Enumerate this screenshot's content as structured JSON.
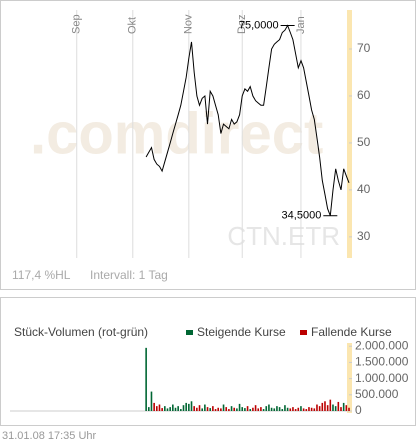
{
  "chart_data": [
    {
      "type": "line",
      "watermark": ".comdirect",
      "symbol": "CTN.ETR",
      "info": [
        "117,4 %HL",
        "Intervall: 1 Tag"
      ],
      "categories": [
        null,
        null,
        null,
        null,
        null,
        null,
        null,
        null,
        null,
        null,
        null,
        null,
        null,
        null,
        null,
        null,
        null,
        null,
        null,
        null,
        null,
        null,
        null,
        null,
        null,
        "Sep",
        null,
        null,
        null,
        null,
        null,
        null,
        null,
        null,
        null,
        null,
        null,
        null,
        null,
        null,
        null,
        null,
        null,
        null,
        null,
        null,
        "Okt",
        null,
        null,
        null,
        null,
        null,
        null,
        null,
        null,
        null,
        null,
        null,
        null,
        null,
        null,
        null,
        null,
        null,
        null,
        null,
        null,
        "Nov",
        null,
        null,
        null,
        null,
        null,
        null,
        null,
        null,
        null,
        null,
        null,
        null,
        null,
        null,
        null,
        null,
        null,
        null,
        null,
        "Dez",
        null,
        null,
        null,
        null,
        null,
        null,
        null,
        null,
        null,
        null,
        null,
        null,
        null,
        null,
        null,
        null,
        null,
        null,
        null,
        null,
        null,
        "Jan",
        null,
        null,
        null,
        null,
        null,
        null,
        null,
        null,
        null,
        null,
        null,
        null,
        null,
        null,
        null,
        null,
        null,
        null
      ],
      "series": [
        {
          "name": "CTN.ETR",
          "color": "#000000",
          "values": [
            null,
            null,
            null,
            null,
            null,
            null,
            null,
            null,
            null,
            null,
            null,
            null,
            null,
            null,
            null,
            null,
            null,
            null,
            null,
            null,
            null,
            null,
            null,
            null,
            null,
            null,
            null,
            null,
            null,
            null,
            null,
            null,
            null,
            null,
            null,
            null,
            null,
            null,
            null,
            null,
            null,
            null,
            null,
            null,
            null,
            null,
            null,
            null,
            null,
            null,
            null,
            47,
            48,
            49,
            46.5,
            45.5,
            45,
            44,
            46,
            48,
            50,
            52,
            54,
            56,
            58,
            61,
            64,
            68,
            71.5,
            65,
            60,
            58,
            59.5,
            60,
            54,
            61,
            60,
            58,
            56,
            52,
            54,
            53.5,
            53,
            55,
            54,
            54.5,
            56,
            60,
            61.5,
            61,
            62,
            60,
            59,
            58.5,
            58,
            58,
            62,
            66,
            70,
            71,
            71.5,
            72,
            73.5,
            74,
            75,
            73.5,
            72,
            69,
            66,
            67.5,
            66,
            63,
            60,
            57,
            55,
            51,
            47,
            42,
            39,
            36,
            34.5,
            40,
            44.5,
            42,
            40,
            44.5,
            43,
            41.5
          ]
        }
      ],
      "annotations": [
        {
          "label": "75,0000",
          "value": 75
        },
        {
          "label": "34,5000",
          "value": 34.5
        }
      ],
      "ylim": [
        25.5,
        78.3
      ],
      "yticks": [
        30,
        40,
        50,
        60,
        70
      ],
      "grid": true
    },
    {
      "type": "bar",
      "title": "Stück-Volumen (rot-grün)",
      "series": [
        {
          "name": "Steigende Kurse",
          "color": "#006633"
        },
        {
          "name": "Fallende Kurse",
          "color": "#bb0000"
        }
      ],
      "values": [
        null,
        null,
        null,
        null,
        null,
        null,
        null,
        null,
        null,
        null,
        null,
        null,
        null,
        null,
        null,
        null,
        null,
        null,
        null,
        null,
        null,
        null,
        null,
        null,
        null,
        null,
        null,
        null,
        null,
        null,
        null,
        null,
        null,
        null,
        null,
        null,
        null,
        null,
        null,
        null,
        null,
        null,
        null,
        null,
        null,
        null,
        null,
        null,
        null,
        null,
        null,
        1950000,
        120000,
        600000,
        250000,
        150000,
        200000,
        90000,
        150000,
        80000,
        120000,
        200000,
        100000,
        150000,
        60000,
        180000,
        250000,
        220000,
        300000,
        150000,
        100000,
        180000,
        80000,
        200000,
        120000,
        90000,
        150000,
        60000,
        100000,
        80000,
        200000,
        120000,
        60000,
        150000,
        100000,
        80000,
        220000,
        120000,
        90000,
        150000,
        60000,
        100000,
        180000,
        80000,
        120000,
        60000,
        150000,
        200000,
        100000,
        80000,
        150000,
        120000,
        60000,
        180000,
        100000,
        80000,
        120000,
        60000,
        100000,
        150000,
        80000,
        60000,
        120000,
        100000,
        80000,
        200000,
        150000,
        250000,
        300000,
        180000,
        350000,
        200000,
        150000,
        280000,
        120000,
        250000,
        180000,
        100000
      ],
      "ylim": [
        0,
        2100000
      ],
      "yticks": [
        {
          "value": 0,
          "label": "0"
        },
        {
          "value": 500000,
          "label": "500.000"
        },
        {
          "value": 1000000,
          "label": "1.000.000"
        },
        {
          "value": 1500000,
          "label": "1.500.000"
        },
        {
          "value": 2000000,
          "label": "2.000.000"
        }
      ]
    }
  ],
  "footer": "31.01.08   17:35 Uhr"
}
